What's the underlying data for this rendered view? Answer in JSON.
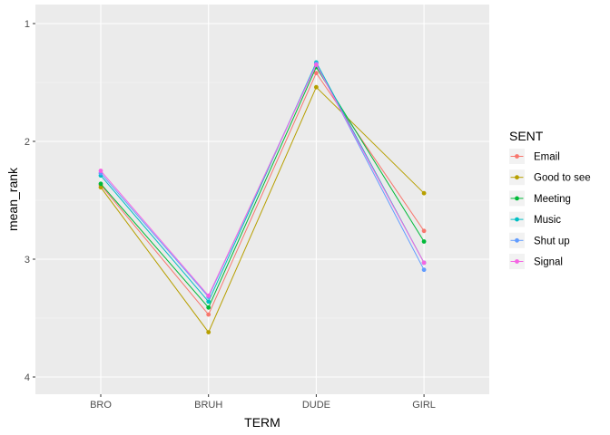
{
  "chart_data": {
    "type": "line",
    "xlabel": "TERM",
    "ylabel": "mean_rank",
    "categories": [
      "BRO",
      "BRUH",
      "DUDE",
      "GIRL"
    ],
    "y_reversed": true,
    "ylim": [
      1,
      4.1
    ],
    "yticks": [
      1,
      2,
      3,
      4
    ],
    "grid": true,
    "legend_title": "SENT",
    "legend_position": "right",
    "panel_background": "#ebebeb",
    "series": [
      {
        "name": "Email",
        "color": "#F8766D",
        "values": [
          2.37,
          3.47,
          1.42,
          2.76
        ]
      },
      {
        "name": "Good to see",
        "color": "#B79F00",
        "values": [
          2.39,
          3.62,
          1.54,
          2.44
        ]
      },
      {
        "name": "Meeting",
        "color": "#00BA38",
        "values": [
          2.36,
          3.41,
          1.37,
          2.85
        ]
      },
      {
        "name": "Music",
        "color": "#00BFC4",
        "values": [
          2.29,
          3.36,
          1.33,
          3.03
        ]
      },
      {
        "name": "Shut up",
        "color": "#619CFF",
        "values": [
          2.27,
          3.32,
          1.34,
          3.09
        ]
      },
      {
        "name": "Signal",
        "color": "#F564E3",
        "values": [
          2.25,
          3.31,
          1.35,
          3.03
        ]
      }
    ]
  }
}
